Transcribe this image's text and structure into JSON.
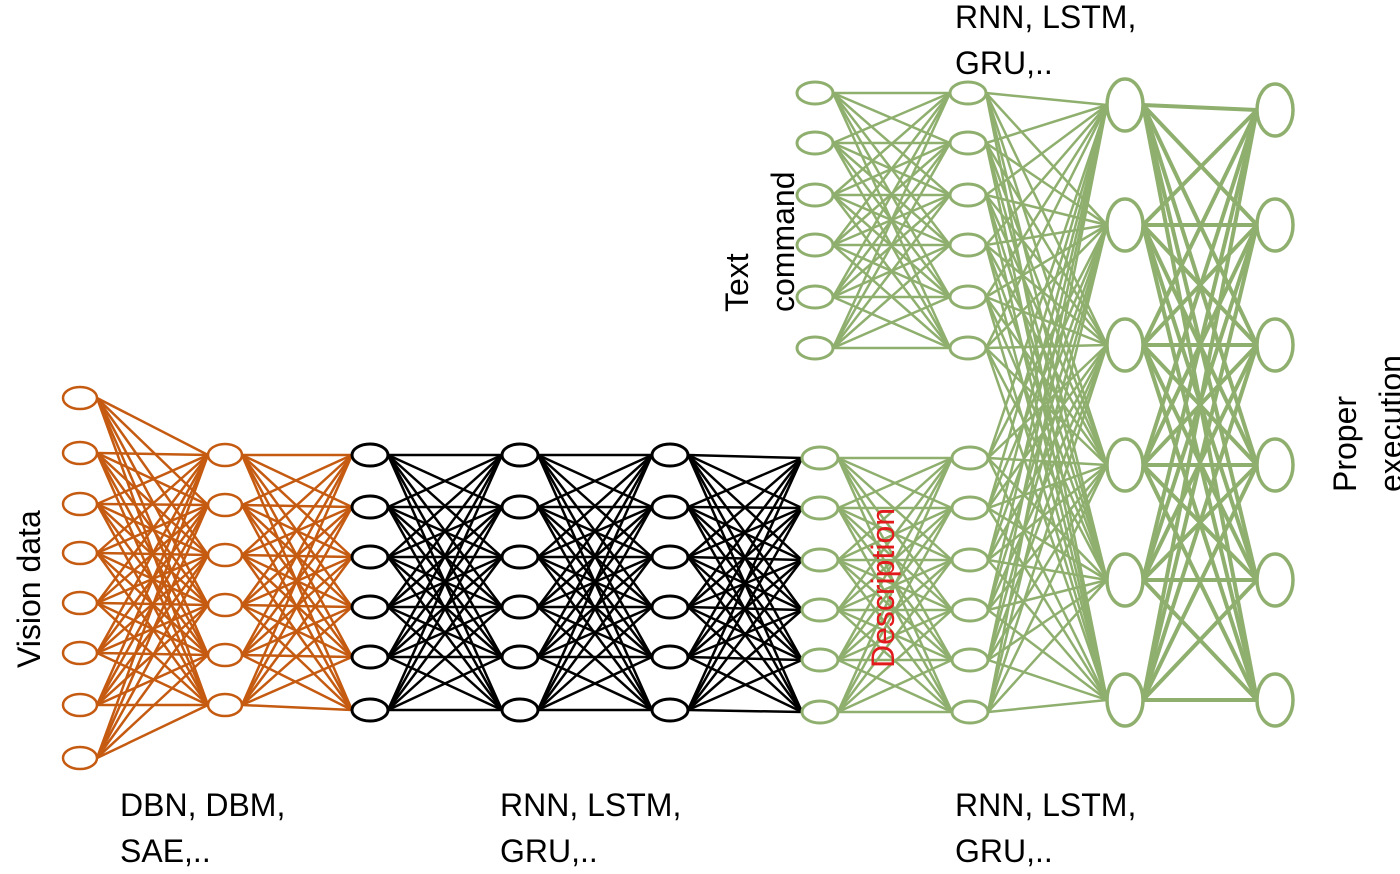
{
  "colors": {
    "vision_net": "#c55a11",
    "middle_net": "#000000",
    "text_net": "#8faf6e",
    "description_text": "#e31a1c",
    "label_text": "#000000"
  },
  "labels": {
    "vision_data": "Vision data",
    "text_command": [
      "Text",
      "command"
    ],
    "description": "Description",
    "proper_execution": [
      "Proper",
      "execution"
    ],
    "vision_models": [
      "DBN, DBM,",
      "SAE,.."
    ],
    "middle_models": [
      "RNN, LSTM,",
      "GRU,.."
    ],
    "lower_text_models": [
      "RNN, LSTM,",
      "GRU,.."
    ],
    "upper_text_models": [
      "RNN, LSTM,",
      "GRU,.."
    ]
  },
  "layers": [
    {
      "name": "vision-input-layer",
      "group": "vision_net",
      "nodes": 8
    },
    {
      "name": "vision-hidden-layer",
      "group": "vision_net",
      "nodes": 6
    },
    {
      "name": "middle-layer-1",
      "group": "middle_net",
      "nodes": 6
    },
    {
      "name": "middle-layer-2",
      "group": "middle_net",
      "nodes": 6
    },
    {
      "name": "middle-layer-3",
      "group": "middle_net",
      "nodes": 6
    },
    {
      "name": "description-layer",
      "group": "text_net",
      "nodes": 6
    },
    {
      "name": "description-hidden-layer",
      "group": "text_net",
      "nodes": 6
    },
    {
      "name": "text-input-layer",
      "group": "text_net",
      "nodes": 6
    },
    {
      "name": "text-hidden-layer",
      "group": "text_net",
      "nodes": 6
    },
    {
      "name": "fusion-layer",
      "group": "text_net",
      "nodes": 6
    },
    {
      "name": "output-layer",
      "group": "text_net",
      "nodes": 6
    }
  ]
}
